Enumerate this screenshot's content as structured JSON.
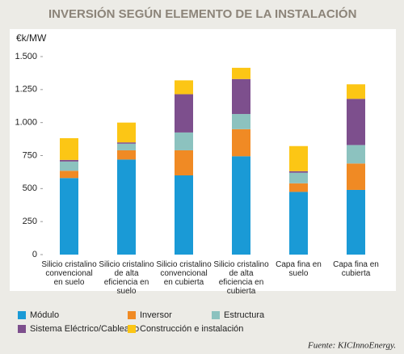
{
  "chart_data": {
    "type": "stacked_bar",
    "title": "INVERSIÓN SEGÚN ELEMENTO DE LA INSTALACIÓN",
    "y_label": "€k/MW",
    "source": "Fuente: KICInnoEnergy.",
    "categories": [
      "Silicio cristalino convencional en suelo",
      "Silicio cristalino de alta eficiencia en suelo",
      "Silicio cristalino convencional en cubierta",
      "Silicio cristalino de alta eficiencia en cubierta",
      "Capa fina en suelo",
      "Capa fina en cubierta"
    ],
    "series": [
      {
        "name": "Módulo",
        "color": "#1a9ad6",
        "values": [
          580,
          720,
          600,
          745,
          475,
          490
        ]
      },
      {
        "name": "Inversor",
        "color": "#f08a24",
        "values": [
          55,
          70,
          190,
          205,
          65,
          200
        ]
      },
      {
        "name": "Estructura",
        "color": "#8cc2bf",
        "values": [
          70,
          50,
          135,
          115,
          80,
          140
        ]
      },
      {
        "name": "Sistema Eléctrico/Cableado",
        "color": "#7d4f8d",
        "values": [
          12,
          10,
          290,
          265,
          12,
          350
        ]
      },
      {
        "name": "Construcción e instalación",
        "color": "#fcc615",
        "values": [
          165,
          150,
          105,
          85,
          190,
          110
        ]
      }
    ],
    "ylim": [
      0,
      1500
    ],
    "yticks": [
      0,
      250,
      500,
      750,
      {
        "value": 1000,
        "label": "1.000"
      },
      {
        "value": 1250,
        "label": "1.250"
      },
      {
        "value": 1500,
        "label": "1.500"
      }
    ]
  }
}
